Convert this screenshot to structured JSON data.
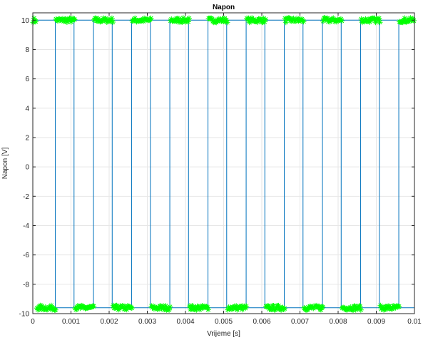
{
  "chart_data": {
    "type": "line",
    "title": "Napon",
    "xlabel": "Vrijeme [s]",
    "ylabel": "Napon [V]",
    "xlim": [
      0,
      0.01
    ],
    "ylim": [
      -10,
      10.5
    ],
    "grid": true,
    "x_ticks": [
      0,
      0.001,
      0.002,
      0.003,
      0.004,
      0.005,
      0.006,
      0.007,
      0.008,
      0.009,
      0.01
    ],
    "x_tick_labels": [
      "0",
      "0.001",
      "0.002",
      "0.003",
      "0.004",
      "0.005",
      "0.006",
      "0.007",
      "0.008",
      "0.009",
      "0.01"
    ],
    "y_ticks": [
      -10,
      -8,
      -6,
      -4,
      -2,
      0,
      2,
      4,
      6,
      8,
      10
    ],
    "y_tick_labels": [
      "-10",
      "-8",
      "-6",
      "-4",
      "-2",
      "0",
      "2",
      "4",
      "6",
      "8",
      "10"
    ],
    "series": [
      {
        "style": "line",
        "color": "#0072BD",
        "x": [
          0,
          0.00059,
          0.00059,
          0.00108,
          0.00108,
          0.00159,
          0.00159,
          0.00208,
          0.00208,
          0.00259,
          0.00259,
          0.00308,
          0.00308,
          0.00359,
          0.00359,
          0.00408,
          0.00408,
          0.00459,
          0.00459,
          0.00508,
          0.00508,
          0.00559,
          0.00559,
          0.00608,
          0.00608,
          0.00659,
          0.00659,
          0.00708,
          0.00708,
          0.00759,
          0.00759,
          0.00808,
          0.00808,
          0.00859,
          0.00859,
          0.00908,
          0.00908,
          0.00959,
          0.00959,
          0.01
        ],
        "y": [
          10,
          10,
          -9.6,
          -9.6,
          10,
          10,
          -9.6,
          -9.6,
          10,
          10,
          -9.6,
          -9.6,
          10,
          10,
          -9.6,
          -9.6,
          10,
          10,
          -9.6,
          -9.6,
          10,
          10,
          -9.6,
          -9.6,
          10,
          10,
          -9.6,
          -9.6,
          10,
          10,
          -9.6,
          -9.6,
          10,
          10,
          -9.6,
          -9.6,
          10,
          10,
          -9.6,
          -9.6
        ]
      },
      {
        "style": "markers",
        "marker": "*",
        "color": "#00FF00",
        "high_value": 10,
        "low_value": -9.6,
        "noise": 0.15,
        "high_clusters": [
          [
            0,
            0.0001
          ],
          [
            0.0006,
            0.0011
          ],
          [
            0.0016,
            0.0021
          ],
          [
            0.0026,
            0.0031
          ],
          [
            0.0036,
            0.0041
          ],
          [
            0.0046,
            0.0051
          ],
          [
            0.0056,
            0.0061
          ],
          [
            0.0066,
            0.0071
          ],
          [
            0.0076,
            0.0081
          ],
          [
            0.0086,
            0.0091
          ],
          [
            0.0096,
            0.01
          ]
        ],
        "low_clusters": [
          [
            0.0001,
            0.0006
          ],
          [
            0.0011,
            0.0016
          ],
          [
            0.0021,
            0.0026
          ],
          [
            0.0031,
            0.0036
          ],
          [
            0.0041,
            0.0046
          ],
          [
            0.0051,
            0.0056
          ],
          [
            0.0061,
            0.0066
          ],
          [
            0.0071,
            0.0076
          ],
          [
            0.0081,
            0.0086
          ],
          [
            0.0091,
            0.0096
          ]
        ]
      }
    ]
  },
  "colors": {
    "axes_background": "#ffffff",
    "axes_border": "#262626",
    "grid": "#e6e6e6",
    "text": "#262626"
  }
}
